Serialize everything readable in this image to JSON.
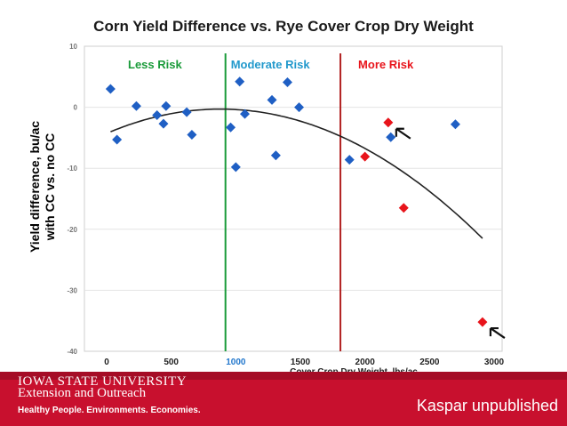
{
  "header": {
    "title": "Corn Yield Difference vs. Rye Cover Crop Dry Weight"
  },
  "footer": {
    "university": "IOWA STATE UNIVERSITY",
    "unit": "Extension and Outreach",
    "tagline": "Healthy People. Environments. Economies.",
    "credit": "Kaspar unpublished"
  },
  "chart_data": {
    "type": "scatter",
    "title": "Corn Yield Difference vs. Rye Cover Crop Dry Weight",
    "xlabel": "Cover Crop Dry Weight, lbs/ac",
    "ylabel": "Yield difference, bu/ac\nwith CC vs. no CC",
    "xlim": [
      0,
      3000
    ],
    "ylim": [
      -40,
      10
    ],
    "x_ticks": [
      0,
      500,
      1000,
      1500,
      2000,
      2500,
      3000
    ],
    "y_ticks": [
      10,
      0,
      -10,
      -20,
      -30,
      -40
    ],
    "grid": true,
    "colors": {
      "blue": "#1f5fc4",
      "red": "#e8141b",
      "green": "#1a9b3a",
      "dark_red": "#b22222",
      "moderate_tick": "#2277cc"
    },
    "regions": [
      {
        "label": "Less Risk",
        "color": "#1a9b3a"
      },
      {
        "label": "Moderate Risk",
        "color": "#2299cc",
        "boundary_x": 920
      },
      {
        "label": "More Risk",
        "color": "#e8141b",
        "boundary_x": 1810
      }
    ],
    "series": [
      {
        "color": "#1f5fc4",
        "points": [
          [
            30,
            3
          ],
          [
            80,
            -5.3
          ],
          [
            230,
            0.2
          ],
          [
            390,
            -1.3
          ],
          [
            440,
            -2.7
          ],
          [
            460,
            0.2
          ],
          [
            620,
            -0.8
          ],
          [
            660,
            -4.5
          ],
          [
            960,
            -3.3
          ],
          [
            1000,
            -9.8
          ],
          [
            1030,
            4.2
          ],
          [
            1070,
            -1.1
          ],
          [
            1280,
            1.2
          ],
          [
            1310,
            -7.9
          ],
          [
            1400,
            4.1
          ],
          [
            1490,
            0
          ],
          [
            1880,
            -8.6
          ],
          [
            2200,
            -4.9
          ],
          [
            2700,
            -2.8
          ]
        ]
      },
      {
        "color": "#e8141b",
        "points": [
          [
            2000,
            -8.1
          ],
          [
            2180,
            -2.5
          ],
          [
            2300,
            -16.5
          ],
          [
            2910,
            -35.2
          ]
        ]
      }
    ],
    "trendline": {
      "type": "quadratic",
      "x_range": [
        30,
        2920
      ],
      "vertex": [
        880,
        -0.3
      ],
      "endpoint_y": -21.7
    },
    "annotations": [
      {
        "type": "arrow",
        "target": [
          2180,
          -2.5
        ]
      },
      {
        "type": "arrow",
        "target": [
          2910,
          -35.2
        ]
      }
    ]
  }
}
